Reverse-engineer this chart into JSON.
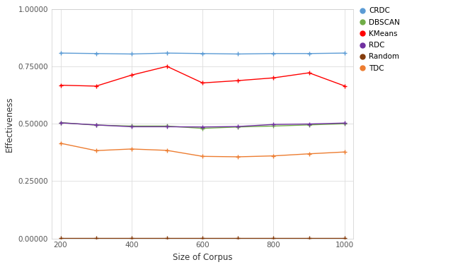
{
  "x": [
    200,
    300,
    400,
    500,
    600,
    700,
    800,
    900,
    1000
  ],
  "CRDC": [
    0.808,
    0.806,
    0.804,
    0.808,
    0.806,
    0.804,
    0.806,
    0.806,
    0.808
  ],
  "DBSCAN": [
    0.505,
    0.494,
    0.49,
    0.49,
    0.48,
    0.486,
    0.49,
    0.495,
    0.5
  ],
  "KMeans": [
    0.668,
    0.664,
    0.712,
    0.75,
    0.678,
    0.688,
    0.7,
    0.722,
    0.665
  ],
  "RDC": [
    0.504,
    0.495,
    0.487,
    0.487,
    0.486,
    0.488,
    0.497,
    0.499,
    0.503
  ],
  "Random": [
    0.002,
    0.002,
    0.002,
    0.002,
    0.002,
    0.002,
    0.002,
    0.002,
    0.002
  ],
  "TDC": [
    0.415,
    0.383,
    0.39,
    0.384,
    0.358,
    0.356,
    0.36,
    0.369,
    0.377
  ],
  "colors": {
    "CRDC": "#5B9BD5",
    "DBSCAN": "#70AD47",
    "KMeans": "#FF0000",
    "RDC": "#7030A0",
    "Random": "#843C0C",
    "TDC": "#ED7D31"
  },
  "xlabel": "Size of Corpus",
  "ylabel": "Effectiveness",
  "ylim": [
    0.0,
    1.0
  ],
  "xlim": [
    175,
    1025
  ],
  "yticks": [
    0.0,
    0.25,
    0.5,
    0.75,
    1.0
  ],
  "ytick_labels": [
    "0.00000",
    "0.25000",
    "0.50000",
    "0.75000",
    "1.00000"
  ],
  "xticks": [
    200,
    400,
    600,
    800,
    1000
  ],
  "background_color": "#FFFFFF",
  "grid_color": "#DDDDDD",
  "linewidth": 1.0,
  "markersize": 4,
  "series_order": [
    "CRDC",
    "DBSCAN",
    "KMeans",
    "RDC",
    "Random",
    "TDC"
  ]
}
